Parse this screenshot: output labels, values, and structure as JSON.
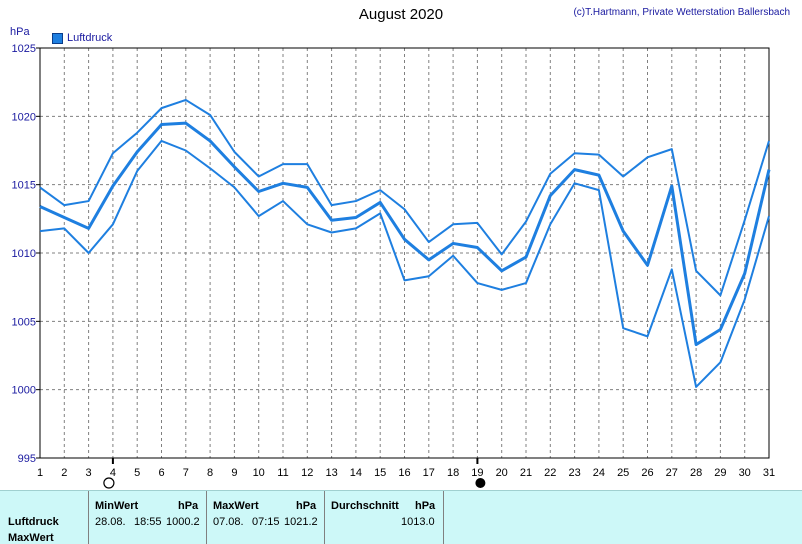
{
  "header": {
    "title": "August 2020",
    "copyright": "(c)T.Hartmann, Private Wetterstation Ballersbach",
    "unit": "hPa",
    "legend_label": "Luftdruck"
  },
  "colors": {
    "series": "#1e7fe0",
    "grid": "#808080",
    "stats_bg": "#cdf8f8"
  },
  "chart_data": {
    "type": "line",
    "title": "August 2020",
    "ylabel": "hPa",
    "xlabel": "",
    "ylim": [
      995,
      1025
    ],
    "yticks": [
      995,
      1000,
      1005,
      1010,
      1015,
      1020,
      1025
    ],
    "x": [
      1,
      2,
      3,
      4,
      5,
      6,
      7,
      8,
      9,
      10,
      11,
      12,
      13,
      14,
      15,
      16,
      17,
      18,
      19,
      20,
      21,
      22,
      23,
      24,
      25,
      26,
      27,
      28,
      29,
      30,
      31
    ],
    "grid": true,
    "legend": "top-left",
    "moon_markers": [
      {
        "day": 4,
        "phase": "full-moon-icon"
      },
      {
        "day": 19,
        "phase": "new-moon-icon"
      }
    ],
    "series": [
      {
        "name": "Luftdruck",
        "role": "max",
        "values": [
          1014.8,
          1013.5,
          1013.8,
          1017.3,
          1018.8,
          1020.6,
          1021.2,
          1020.1,
          1017.4,
          1015.6,
          1016.5,
          1016.5,
          1013.5,
          1013.8,
          1014.6,
          1013.2,
          1010.8,
          1012.1,
          1012.2,
          1009.9,
          1012.3,
          1015.8,
          1017.3,
          1017.2,
          1015.6,
          1017.0,
          1017.6,
          1008.7,
          1006.9,
          1012.4,
          1018.2
        ]
      },
      {
        "role": "mean",
        "values": [
          1013.4,
          1012.6,
          1011.8,
          1014.9,
          1017.4,
          1019.4,
          1019.5,
          1018.2,
          1016.3,
          1014.5,
          1015.1,
          1014.8,
          1012.4,
          1012.6,
          1013.7,
          1011.0,
          1009.5,
          1010.7,
          1010.4,
          1008.7,
          1009.7,
          1014.2,
          1016.1,
          1015.7,
          1011.6,
          1009.1,
          1014.9,
          1003.3,
          1004.4,
          1008.5,
          1016.1
        ]
      },
      {
        "role": "min",
        "values": [
          1011.6,
          1011.8,
          1010.0,
          1012.1,
          1016.0,
          1018.2,
          1017.5,
          1016.2,
          1014.8,
          1012.7,
          1013.8,
          1012.1,
          1011.5,
          1011.8,
          1012.9,
          1008.0,
          1008.3,
          1009.8,
          1007.8,
          1007.3,
          1007.8,
          1012.1,
          1015.1,
          1014.6,
          1004.5,
          1003.9,
          1008.8,
          1000.2,
          1002.0,
          1006.6,
          1012.7
        ]
      }
    ]
  },
  "stats": {
    "row_labels": [
      "Luftdruck",
      "MaxWert"
    ],
    "min_header": "MinWert",
    "min_unit": "hPa",
    "min_date": "28.08.",
    "min_time": "18:55",
    "min_value": "1000.2",
    "max_header": "MaxWert",
    "max_unit": "hPa",
    "max_date": "07.08.",
    "max_time": "07:15",
    "max_value": "1021.2",
    "avg_header": "Durchschnitt",
    "avg_unit": "hPa",
    "avg_value": "1013.0"
  }
}
